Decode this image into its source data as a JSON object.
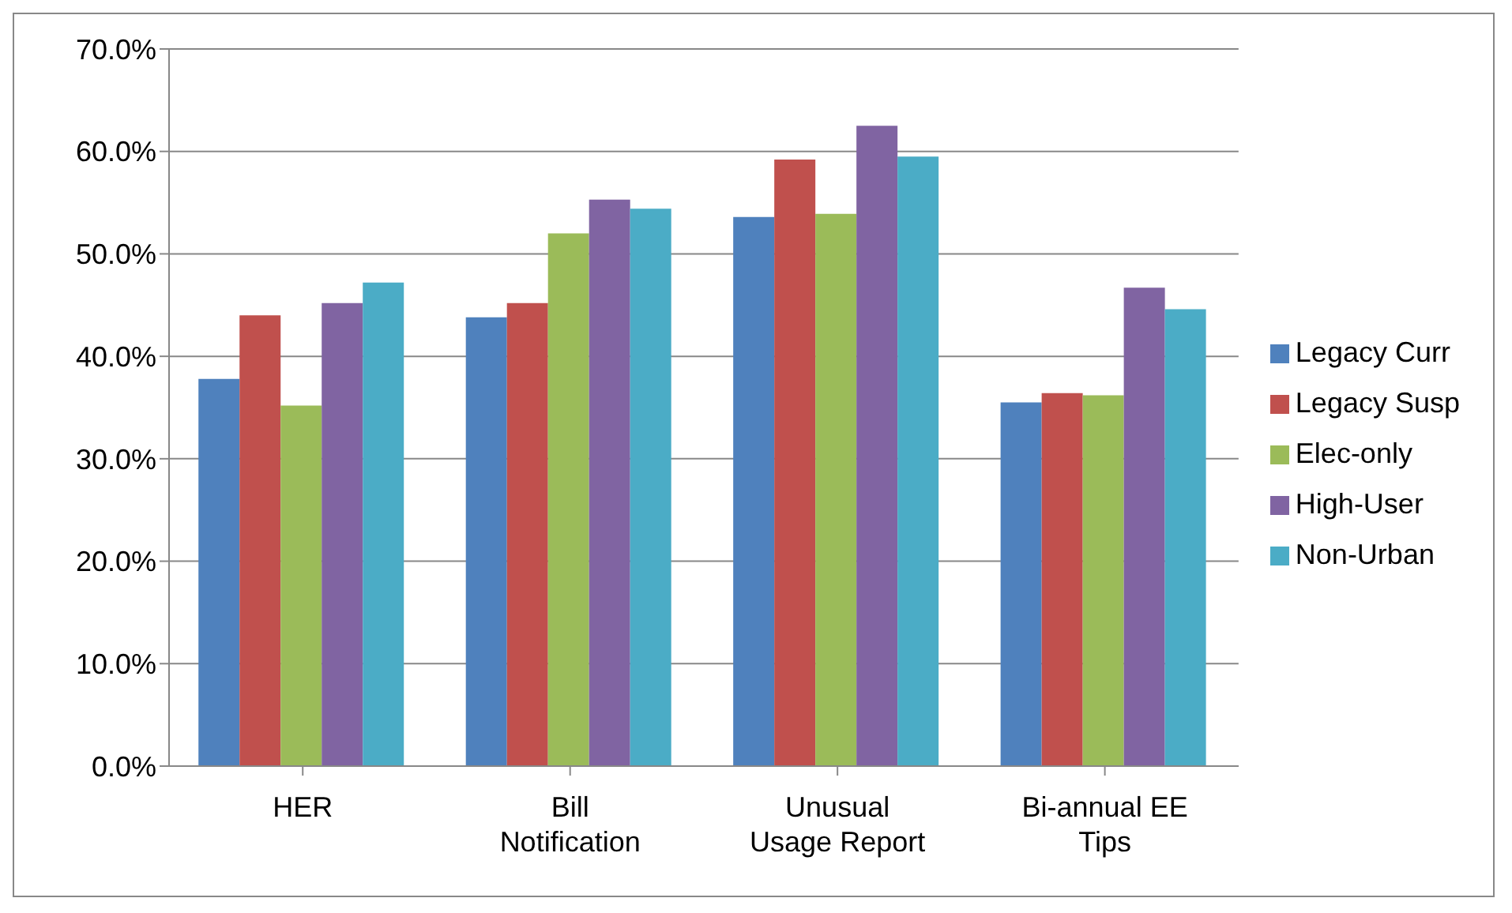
{
  "chart_data": {
    "type": "bar",
    "categories": [
      "HER",
      "Bill Notification",
      "Unusual Usage Report",
      "Bi-annual EE Tips"
    ],
    "series": [
      {
        "name": "Legacy Curr",
        "color": "#4f81bd",
        "values": [
          37.8,
          43.8,
          53.6,
          35.5
        ]
      },
      {
        "name": "Legacy Susp",
        "color": "#c0504d",
        "values": [
          44.0,
          45.2,
          59.2,
          36.4
        ]
      },
      {
        "name": "Elec-only",
        "color": "#9bbb59",
        "values": [
          35.2,
          52.0,
          53.9,
          36.2
        ]
      },
      {
        "name": "High-User",
        "color": "#8064a2",
        "values": [
          45.2,
          55.3,
          62.5,
          46.7
        ]
      },
      {
        "name": "Non-Urban",
        "color": "#4bacc6",
        "values": [
          47.2,
          54.4,
          59.5,
          44.6
        ]
      }
    ],
    "ylim": [
      0,
      70
    ],
    "yticks": [
      {
        "value": 0,
        "label": "0.0%"
      },
      {
        "value": 10,
        "label": "10.0%"
      },
      {
        "value": 20,
        "label": "20.0%"
      },
      {
        "value": 30,
        "label": "30.0%"
      },
      {
        "value": 40,
        "label": "40.0%"
      },
      {
        "value": 50,
        "label": "50.0%"
      },
      {
        "value": 60,
        "label": "60.0%"
      },
      {
        "value": 70,
        "label": "70.0%"
      }
    ],
    "grid": "y",
    "legend": "right"
  }
}
